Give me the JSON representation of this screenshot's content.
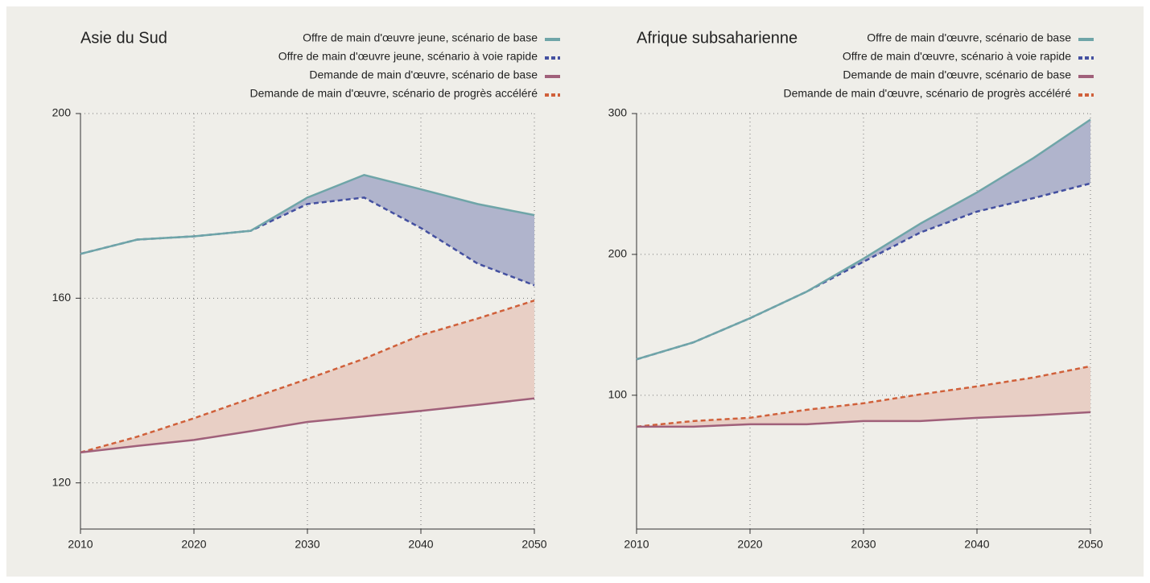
{
  "chart_data": [
    {
      "type": "line",
      "title": "Asie du Sud",
      "x": [
        2010,
        2015,
        2020,
        2025,
        2030,
        2035,
        2040,
        2045,
        2050
      ],
      "xlim": [
        2010,
        2050
      ],
      "xticks": [
        2010,
        2020,
        2030,
        2040,
        2050
      ],
      "ylim": [
        110,
        200
      ],
      "yticks": [
        120,
        160,
        200
      ],
      "grid": true,
      "series": [
        {
          "name": "Offre de main d'œuvre jeune, scénario de base",
          "color": "#6fa5a8",
          "line_style": "solid",
          "values": [
            169.6,
            172.7,
            173.4,
            174.6,
            181.8,
            186.7,
            183.6,
            180.4,
            178.0
          ]
        },
        {
          "name": "Offre de main d'œuvre jeune, scénario à voie rapide",
          "color": "#4450a0",
          "line_style": "dashed",
          "values": [
            169.6,
            172.7,
            173.4,
            174.6,
            180.4,
            181.8,
            175.2,
            167.5,
            162.8
          ]
        },
        {
          "name": "Demande de main d'œuvre, scénario de base",
          "color": "#a0607a",
          "line_style": "solid",
          "values": [
            126.6,
            128.0,
            129.3,
            131.2,
            133.2,
            134.4,
            135.6,
            136.9,
            138.3
          ]
        },
        {
          "name": "Demande de main d'œuvre, scénario de progrès accéléré",
          "color": "#d0603a",
          "line_style": "dashed",
          "values": [
            126.6,
            130.0,
            134.0,
            138.3,
            142.5,
            146.9,
            152.0,
            155.6,
            159.5
          ]
        }
      ],
      "fill_between": [
        {
          "series": [
            0,
            1
          ],
          "color": "#b0b4cc"
        },
        {
          "series": [
            2,
            3
          ],
          "color": "#e8cfc5"
        }
      ]
    },
    {
      "type": "line",
      "title": "Afrique subsaharienne",
      "x": [
        2010,
        2015,
        2020,
        2025,
        2030,
        2035,
        2040,
        2045,
        2050
      ],
      "xlim": [
        2010,
        2050
      ],
      "xticks": [
        2010,
        2020,
        2030,
        2040,
        2050
      ],
      "ylim": [
        5,
        300
      ],
      "yticks": [
        100,
        200,
        300
      ],
      "grid": true,
      "series": [
        {
          "name": "Offre de main d'œuvre, scénario de base",
          "color": "#6fa5a8",
          "line_style": "solid",
          "values": [
            125.5,
            137.5,
            154.7,
            173.6,
            197.0,
            221.8,
            244.0,
            268.5,
            295.7
          ]
        },
        {
          "name": "Offre de main d'œuvre, scénario à voie rapide",
          "color": "#4450a0",
          "line_style": "dashed",
          "values": [
            125.5,
            137.5,
            154.7,
            173.6,
            194.8,
            215.5,
            230.4,
            240.0,
            250.4
          ]
        },
        {
          "name": "Demande de main d'œuvre, scénario de base",
          "color": "#a0607a",
          "line_style": "solid",
          "values": [
            77.7,
            77.7,
            79.4,
            79.4,
            81.7,
            81.7,
            84.0,
            85.7,
            88.0
          ]
        },
        {
          "name": "Demande de main d'œuvre, scénario de progrès accéléré",
          "color": "#d0603a",
          "line_style": "dashed",
          "values": [
            77.7,
            81.7,
            84.0,
            89.7,
            94.3,
            100.6,
            106.3,
            112.6,
            120.6
          ]
        }
      ],
      "fill_between": [
        {
          "series": [
            0,
            1
          ],
          "color": "#b0b4cc"
        },
        {
          "series": [
            2,
            3
          ],
          "color": "#e8cfc5"
        }
      ]
    }
  ]
}
